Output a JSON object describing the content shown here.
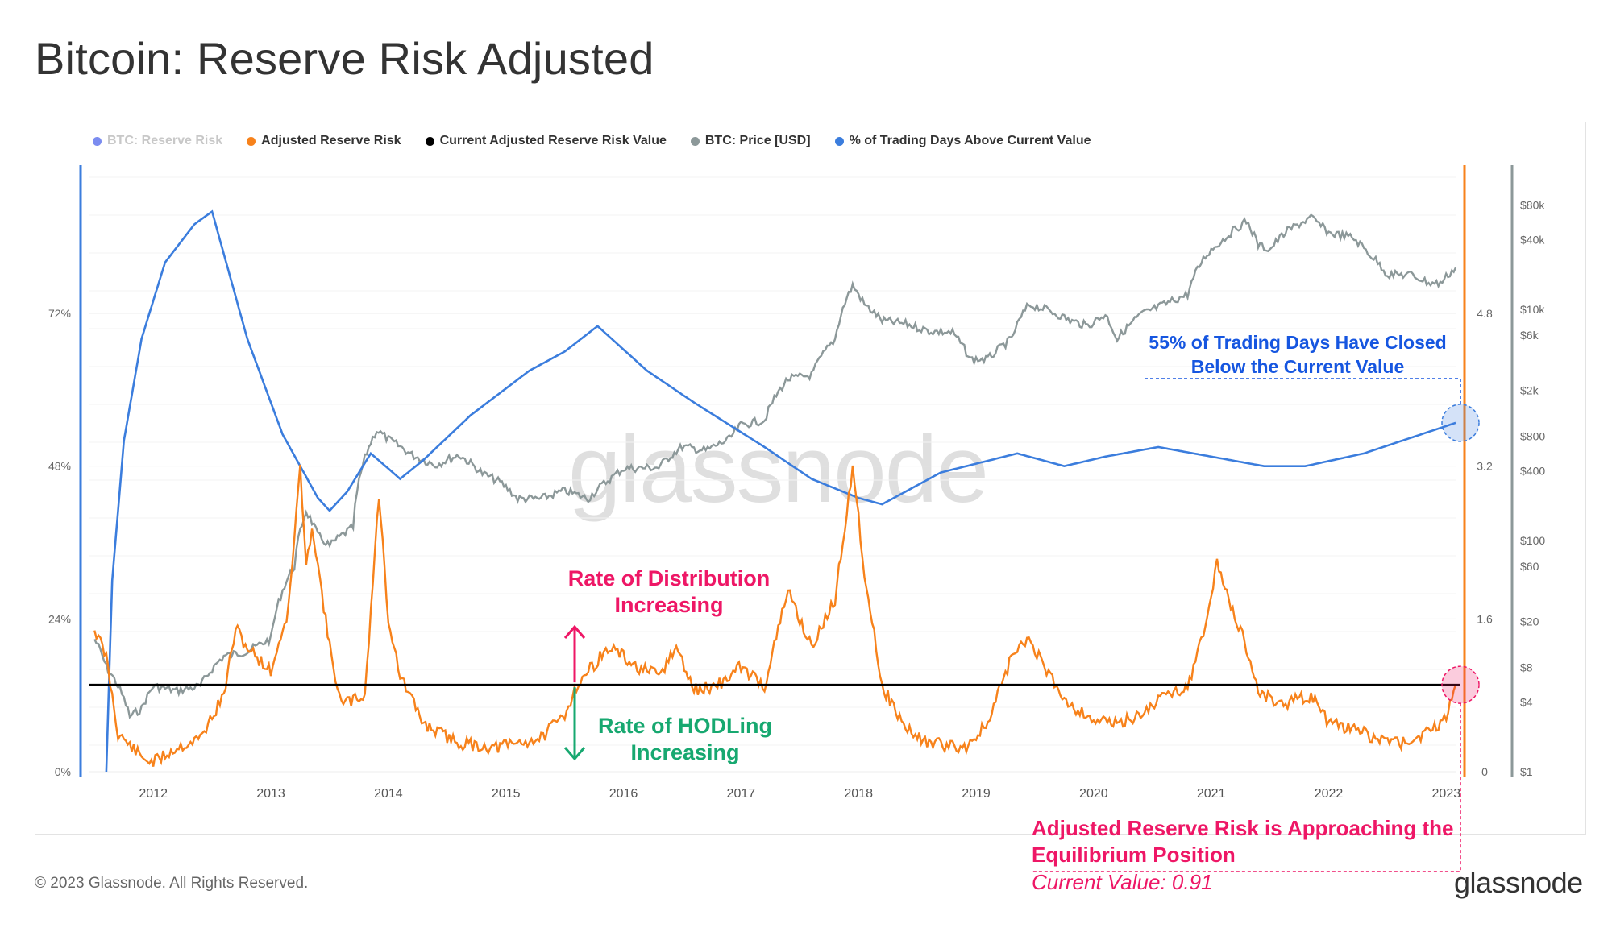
{
  "title": "Bitcoin: Reserve Risk Adjusted",
  "watermark": "glassnode",
  "footer": "© 2023 Glassnode. All Rights Reserved.",
  "brand": "glassnode",
  "legend": [
    {
      "label": "BTC: Reserve Risk",
      "color": "#7b8cf0",
      "muted": true
    },
    {
      "label": "Adjusted Reserve Risk",
      "color": "#f7821b",
      "muted": false
    },
    {
      "label": "Current Adjusted Reserve Risk Value",
      "color": "#000000",
      "muted": false
    },
    {
      "label": "BTC: Price [USD]",
      "color": "#8c9899",
      "muted": false
    },
    {
      "label": "% of Trading Days Above Current Value",
      "color": "#3b7ddd",
      "muted": false
    }
  ],
  "annotations": {
    "distribution": "Rate of Distribution Increasing",
    "hodling": "Rate of HODLing Increasing",
    "days": "55% of Trading Days Have Closed Below the Current Value",
    "adjusted": "Adjusted Reserve Risk is Approaching the Equilibrium Position",
    "current": "Current Value: 0.91"
  },
  "colors": {
    "adjusted": "#f7821b",
    "price": "#8c9899",
    "percent": "#3b7ddd",
    "current_line": "#000000",
    "distribution": "#ee1766",
    "hodling": "#17a870",
    "days_text": "#1656e0"
  },
  "chart_data": {
    "type": "line",
    "title": "Bitcoin: Reserve Risk Adjusted",
    "x_ticks": [
      "2012",
      "2013",
      "2014",
      "2015",
      "2016",
      "2017",
      "2018",
      "2019",
      "2020",
      "2021",
      "2022",
      "2023"
    ],
    "x_range": [
      2011.45,
      2023.08
    ],
    "left_axis": {
      "ticks": [
        "0%",
        "24%",
        "48%",
        "72%"
      ],
      "range": [
        0,
        72
      ]
    },
    "mid_axis": {
      "ticks": [
        "0",
        "1.6",
        "3.2",
        "4.8"
      ],
      "range": [
        0,
        4.8
      ]
    },
    "right_axis": {
      "ticks": [
        "$1",
        "$4",
        "$8",
        "$20",
        "$60",
        "$100",
        "$400",
        "$800",
        "$2k",
        "$6k",
        "$10k",
        "$40k",
        "$80k"
      ],
      "scale": "log"
    },
    "current_value": 0.91,
    "series": [
      {
        "name": "Adjusted Reserve Risk",
        "axis": "mid",
        "points": [
          [
            2011.5,
            1.5
          ],
          [
            2011.6,
            1.2
          ],
          [
            2011.7,
            0.4
          ],
          [
            2011.9,
            0.15
          ],
          [
            2012.0,
            0.1
          ],
          [
            2012.2,
            0.25
          ],
          [
            2012.4,
            0.35
          ],
          [
            2012.6,
            0.8
          ],
          [
            2012.7,
            1.5
          ],
          [
            2012.8,
            1.3
          ],
          [
            2013.0,
            1.05
          ],
          [
            2013.15,
            1.7
          ],
          [
            2013.25,
            3.2
          ],
          [
            2013.3,
            2.1
          ],
          [
            2013.35,
            2.6
          ],
          [
            2013.5,
            1.3
          ],
          [
            2013.6,
            0.7
          ],
          [
            2013.8,
            0.8
          ],
          [
            2013.92,
            2.9
          ],
          [
            2014.0,
            1.6
          ],
          [
            2014.1,
            1.0
          ],
          [
            2014.3,
            0.5
          ],
          [
            2014.6,
            0.3
          ],
          [
            2014.9,
            0.25
          ],
          [
            2015.1,
            0.3
          ],
          [
            2015.3,
            0.35
          ],
          [
            2015.5,
            0.6
          ],
          [
            2015.6,
            0.9
          ],
          [
            2015.8,
            1.2
          ],
          [
            2015.9,
            1.3
          ],
          [
            2016.1,
            1.1
          ],
          [
            2016.3,
            1.0
          ],
          [
            2016.45,
            1.3
          ],
          [
            2016.6,
            0.85
          ],
          [
            2016.8,
            0.9
          ],
          [
            2017.0,
            1.1
          ],
          [
            2017.2,
            0.9
          ],
          [
            2017.4,
            1.9
          ],
          [
            2017.6,
            1.3
          ],
          [
            2017.8,
            1.8
          ],
          [
            2017.95,
            3.2
          ],
          [
            2018.05,
            2.1
          ],
          [
            2018.2,
            0.9
          ],
          [
            2018.4,
            0.45
          ],
          [
            2018.6,
            0.3
          ],
          [
            2018.9,
            0.25
          ],
          [
            2019.1,
            0.5
          ],
          [
            2019.3,
            1.2
          ],
          [
            2019.45,
            1.4
          ],
          [
            2019.6,
            1.05
          ],
          [
            2019.8,
            0.7
          ],
          [
            2020.0,
            0.55
          ],
          [
            2020.2,
            0.5
          ],
          [
            2020.4,
            0.6
          ],
          [
            2020.6,
            0.8
          ],
          [
            2020.8,
            0.9
          ],
          [
            2020.95,
            1.5
          ],
          [
            2021.05,
            2.2
          ],
          [
            2021.15,
            1.8
          ],
          [
            2021.3,
            1.3
          ],
          [
            2021.4,
            0.85
          ],
          [
            2021.6,
            0.7
          ],
          [
            2021.85,
            0.8
          ],
          [
            2022.0,
            0.5
          ],
          [
            2022.2,
            0.45
          ],
          [
            2022.4,
            0.35
          ],
          [
            2022.6,
            0.3
          ],
          [
            2022.8,
            0.38
          ],
          [
            2022.95,
            0.5
          ],
          [
            2023.0,
            0.6
          ],
          [
            2023.08,
            0.91
          ]
        ]
      },
      {
        "name": "BTC: Price [USD]",
        "axis": "right",
        "points": [
          [
            2011.5,
            14
          ],
          [
            2011.6,
            8
          ],
          [
            2011.8,
            3
          ],
          [
            2011.9,
            3.5
          ],
          [
            2012.0,
            5.5
          ],
          [
            2012.2,
            5
          ],
          [
            2012.4,
            5.5
          ],
          [
            2012.6,
            10
          ],
          [
            2012.8,
            11
          ],
          [
            2013.0,
            14
          ],
          [
            2013.2,
            60
          ],
          [
            2013.3,
            180
          ],
          [
            2013.4,
            110
          ],
          [
            2013.5,
            90
          ],
          [
            2013.7,
            130
          ],
          [
            2013.9,
            900
          ],
          [
            2014.0,
            750
          ],
          [
            2014.2,
            550
          ],
          [
            2014.4,
            450
          ],
          [
            2014.6,
            550
          ],
          [
            2014.8,
            380
          ],
          [
            2014.95,
            320
          ],
          [
            2015.1,
            230
          ],
          [
            2015.3,
            230
          ],
          [
            2015.5,
            270
          ],
          [
            2015.7,
            230
          ],
          [
            2015.9,
            350
          ],
          [
            2016.0,
            420
          ],
          [
            2016.3,
            430
          ],
          [
            2016.5,
            650
          ],
          [
            2016.7,
            600
          ],
          [
            2016.9,
            750
          ],
          [
            2017.0,
            1000
          ],
          [
            2017.2,
            1100
          ],
          [
            2017.4,
            2500
          ],
          [
            2017.6,
            2700
          ],
          [
            2017.8,
            5500
          ],
          [
            2017.95,
            16000
          ],
          [
            2018.05,
            11000
          ],
          [
            2018.2,
            8000
          ],
          [
            2018.4,
            7500
          ],
          [
            2018.6,
            6500
          ],
          [
            2018.8,
            6300
          ],
          [
            2018.95,
            3700
          ],
          [
            2019.1,
            3700
          ],
          [
            2019.3,
            5500
          ],
          [
            2019.45,
            11000
          ],
          [
            2019.6,
            10000
          ],
          [
            2019.8,
            8000
          ],
          [
            2019.95,
            7200
          ],
          [
            2020.1,
            9000
          ],
          [
            2020.2,
            5500
          ],
          [
            2020.4,
            9000
          ],
          [
            2020.6,
            11000
          ],
          [
            2020.8,
            13500
          ],
          [
            2020.95,
            29000
          ],
          [
            2021.1,
            40000
          ],
          [
            2021.3,
            58000
          ],
          [
            2021.4,
            36000
          ],
          [
            2021.5,
            33000
          ],
          [
            2021.65,
            48000
          ],
          [
            2021.85,
            62000
          ],
          [
            2022.0,
            46000
          ],
          [
            2022.2,
            42000
          ],
          [
            2022.35,
            30000
          ],
          [
            2022.5,
            20000
          ],
          [
            2022.7,
            20000
          ],
          [
            2022.85,
            17000
          ],
          [
            2022.95,
            16800
          ],
          [
            2023.08,
            23000
          ]
        ]
      },
      {
        "name": "% of Trading Days Above Current Value",
        "axis": "left",
        "points": [
          [
            2011.6,
            0
          ],
          [
            2011.65,
            30
          ],
          [
            2011.75,
            52
          ],
          [
            2011.9,
            68
          ],
          [
            2012.1,
            80
          ],
          [
            2012.35,
            86
          ],
          [
            2012.5,
            88
          ],
          [
            2012.8,
            68
          ],
          [
            2013.1,
            53
          ],
          [
            2013.4,
            43
          ],
          [
            2013.5,
            41
          ],
          [
            2013.65,
            44
          ],
          [
            2013.85,
            50
          ],
          [
            2014.1,
            46
          ],
          [
            2014.3,
            49
          ],
          [
            2014.7,
            56
          ],
          [
            2015.2,
            63
          ],
          [
            2015.5,
            66
          ],
          [
            2015.78,
            70
          ],
          [
            2016.2,
            63
          ],
          [
            2016.6,
            58
          ],
          [
            2017.2,
            51
          ],
          [
            2017.6,
            46
          ],
          [
            2018.0,
            43
          ],
          [
            2018.2,
            42
          ],
          [
            2018.7,
            47
          ],
          [
            2019.35,
            50
          ],
          [
            2019.75,
            48
          ],
          [
            2020.1,
            49.5
          ],
          [
            2020.55,
            51
          ],
          [
            2021.0,
            49.5
          ],
          [
            2021.45,
            48
          ],
          [
            2021.8,
            48
          ],
          [
            2022.3,
            50
          ],
          [
            2023.08,
            54.8
          ]
        ]
      }
    ]
  }
}
